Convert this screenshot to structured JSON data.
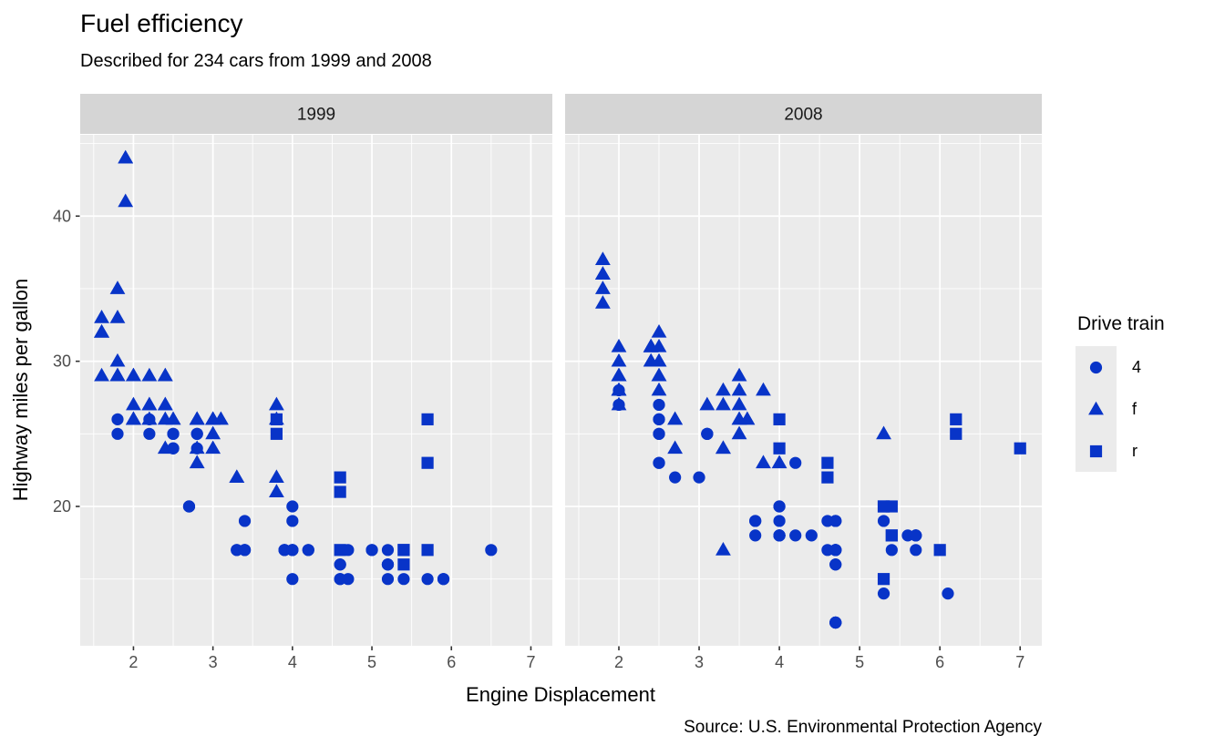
{
  "header": {
    "title": "Fuel efficiency",
    "subtitle": "Described for 234 cars from 1999 and 2008"
  },
  "caption": "Source: U.S. Environmental Protection Agency",
  "chart_data": {
    "type": "scatter",
    "title": "Fuel efficiency",
    "subtitle": "Described for 234 cars from 1999 and 2008",
    "xlabel": "Engine Displacement",
    "ylabel": "Highway miles per gallon",
    "x": {
      "domain": [
        1.33,
        7.27
      ],
      "ticks": [
        2,
        3,
        4,
        5,
        6,
        7
      ],
      "minor": [
        1.5,
        2.5,
        3.5,
        4.5,
        5.5,
        6.5
      ]
    },
    "y": {
      "domain": [
        10.4,
        45.6
      ],
      "ticks": [
        20,
        30,
        40
      ],
      "minor": [
        15,
        25,
        35,
        45
      ]
    },
    "grid": "on",
    "point_color": "#0834c8",
    "panel_bg": "#EBEBEB",
    "strip_bg": "#D5D5D5",
    "tick_label_color": "#4D4D4D",
    "legend": {
      "title": "Drive train",
      "position": "right",
      "entries": [
        {
          "label": "4",
          "shape": "circle"
        },
        {
          "label": "f",
          "shape": "triangle"
        },
        {
          "label": "r",
          "shape": "square"
        }
      ]
    },
    "facets": [
      {
        "label": "1999",
        "points": [
          [
            1.8,
            29,
            "f"
          ],
          [
            1.8,
            29,
            "f"
          ],
          [
            2.8,
            26,
            "f"
          ],
          [
            2.8,
            26,
            "f"
          ],
          [
            1.8,
            26,
            "4"
          ],
          [
            1.8,
            25,
            "4"
          ],
          [
            2.8,
            25,
            "4"
          ],
          [
            2.8,
            25,
            "4"
          ],
          [
            2.8,
            24,
            "4"
          ],
          [
            5.7,
            17,
            "r"
          ],
          [
            5.7,
            26,
            "r"
          ],
          [
            5.7,
            23,
            "r"
          ],
          [
            5.7,
            15,
            "4"
          ],
          [
            6.5,
            17,
            "4"
          ],
          [
            2.4,
            27,
            "f"
          ],
          [
            3.1,
            26,
            "f"
          ],
          [
            2.4,
            24,
            "f"
          ],
          [
            3.0,
            24,
            "f"
          ],
          [
            3.3,
            22,
            "f"
          ],
          [
            3.3,
            22,
            "f"
          ],
          [
            3.8,
            22,
            "f"
          ],
          [
            3.8,
            21,
            "f"
          ],
          [
            3.9,
            17,
            "4"
          ],
          [
            3.9,
            17,
            "4"
          ],
          [
            5.2,
            17,
            "4"
          ],
          [
            5.2,
            15,
            "4"
          ],
          [
            3.9,
            17,
            "4"
          ],
          [
            5.2,
            16,
            "4"
          ],
          [
            5.9,
            15,
            "4"
          ],
          [
            5.2,
            16,
            "4"
          ],
          [
            5.2,
            16,
            "4"
          ],
          [
            5.9,
            15,
            "4"
          ],
          [
            4.6,
            17,
            "r"
          ],
          [
            5.4,
            17,
            "r"
          ],
          [
            4.0,
            17,
            "4"
          ],
          [
            4.0,
            17,
            "4"
          ],
          [
            4.0,
            19,
            "4"
          ],
          [
            5.0,
            17,
            "4"
          ],
          [
            4.2,
            17,
            "4"
          ],
          [
            4.2,
            17,
            "4"
          ],
          [
            4.6,
            16,
            "4"
          ],
          [
            4.6,
            15,
            "4"
          ],
          [
            5.4,
            15,
            "4"
          ],
          [
            3.8,
            26,
            "r"
          ],
          [
            3.8,
            25,
            "r"
          ],
          [
            4.6,
            21,
            "r"
          ],
          [
            4.6,
            22,
            "r"
          ],
          [
            1.6,
            33,
            "f"
          ],
          [
            1.6,
            32,
            "f"
          ],
          [
            1.6,
            32,
            "f"
          ],
          [
            1.6,
            29,
            "f"
          ],
          [
            1.6,
            32,
            "f"
          ],
          [
            2.4,
            26,
            "f"
          ],
          [
            2.4,
            27,
            "f"
          ],
          [
            2.5,
            26,
            "f"
          ],
          [
            2.5,
            26,
            "f"
          ],
          [
            2.0,
            26,
            "f"
          ],
          [
            2.0,
            27,
            "f"
          ],
          [
            4.0,
            20,
            "4"
          ],
          [
            4.7,
            17,
            "4"
          ],
          [
            4.0,
            15,
            "4"
          ],
          [
            4.6,
            16,
            "4"
          ],
          [
            4.6,
            15,
            "4"
          ],
          [
            4.7,
            15,
            "4"
          ],
          [
            5.4,
            17,
            "r"
          ],
          [
            5.4,
            16,
            "r"
          ],
          [
            4.0,
            17,
            "4"
          ],
          [
            5.0,
            17,
            "4"
          ],
          [
            2.4,
            29,
            "f"
          ],
          [
            2.4,
            29,
            "f"
          ],
          [
            3.0,
            26,
            "f"
          ],
          [
            3.0,
            25,
            "f"
          ],
          [
            3.3,
            17,
            "4"
          ],
          [
            3.3,
            17,
            "4"
          ],
          [
            3.1,
            26,
            "f"
          ],
          [
            3.8,
            26,
            "f"
          ],
          [
            3.8,
            27,
            "f"
          ],
          [
            2.2,
            26,
            "4"
          ],
          [
            2.2,
            25,
            "4"
          ],
          [
            2.5,
            25,
            "4"
          ],
          [
            2.5,
            24,
            "4"
          ],
          [
            2.5,
            25,
            "4"
          ],
          [
            2.5,
            24,
            "4"
          ],
          [
            2.7,
            20,
            "4"
          ],
          [
            2.7,
            20,
            "4"
          ],
          [
            3.4,
            19,
            "4"
          ],
          [
            3.4,
            17,
            "4"
          ],
          [
            2.2,
            26,
            "f"
          ],
          [
            2.2,
            27,
            "f"
          ],
          [
            3.0,
            26,
            "f"
          ],
          [
            3.0,
            26,
            "f"
          ],
          [
            2.2,
            26,
            "f"
          ],
          [
            2.2,
            27,
            "f"
          ],
          [
            3.0,
            26,
            "f"
          ],
          [
            3.0,
            26,
            "f"
          ],
          [
            1.8,
            30,
            "f"
          ],
          [
            1.8,
            33,
            "f"
          ],
          [
            1.8,
            35,
            "f"
          ],
          [
            2.7,
            20,
            "4"
          ],
          [
            3.4,
            17,
            "4"
          ],
          [
            3.4,
            17,
            "4"
          ],
          [
            2.0,
            29,
            "f"
          ],
          [
            2.0,
            26,
            "f"
          ],
          [
            2.8,
            24,
            "f"
          ],
          [
            1.9,
            44,
            "f"
          ],
          [
            2.0,
            29,
            "f"
          ],
          [
            2.0,
            26,
            "f"
          ],
          [
            2.8,
            23,
            "f"
          ],
          [
            1.8,
            29,
            "f"
          ],
          [
            1.8,
            29,
            "f"
          ],
          [
            2.8,
            26,
            "f"
          ],
          [
            2.8,
            26,
            "f"
          ],
          [
            1.9,
            44,
            "f"
          ],
          [
            1.9,
            41,
            "f"
          ],
          [
            2.0,
            29,
            "f"
          ],
          [
            2.0,
            26,
            "f"
          ],
          [
            2.2,
            29,
            "f"
          ]
        ]
      },
      {
        "label": "2008",
        "points": [
          [
            2.0,
            31,
            "f"
          ],
          [
            2.0,
            30,
            "f"
          ],
          [
            3.1,
            27,
            "f"
          ],
          [
            2.0,
            28,
            "4"
          ],
          [
            2.0,
            27,
            "4"
          ],
          [
            3.1,
            25,
            "4"
          ],
          [
            3.1,
            25,
            "4"
          ],
          [
            3.1,
            25,
            "4"
          ],
          [
            4.2,
            23,
            "4"
          ],
          [
            5.3,
            20,
            "r"
          ],
          [
            5.3,
            15,
            "r"
          ],
          [
            5.3,
            20,
            "r"
          ],
          [
            6.0,
            17,
            "r"
          ],
          [
            6.2,
            26,
            "r"
          ],
          [
            6.2,
            25,
            "r"
          ],
          [
            7.0,
            24,
            "r"
          ],
          [
            5.3,
            19,
            "4"
          ],
          [
            5.3,
            14,
            "4"
          ],
          [
            2.4,
            30,
            "f"
          ],
          [
            3.5,
            29,
            "f"
          ],
          [
            3.6,
            26,
            "f"
          ],
          [
            3.3,
            24,
            "f"
          ],
          [
            3.3,
            24,
            "f"
          ],
          [
            3.3,
            17,
            "f"
          ],
          [
            3.8,
            23,
            "f"
          ],
          [
            4.0,
            23,
            "f"
          ],
          [
            3.7,
            19,
            "4"
          ],
          [
            4.7,
            19,
            "4"
          ],
          [
            4.7,
            19,
            "4"
          ],
          [
            4.7,
            12,
            "4"
          ],
          [
            4.7,
            17,
            "4"
          ],
          [
            4.7,
            17,
            "4"
          ],
          [
            4.7,
            12,
            "4"
          ],
          [
            5.7,
            18,
            "4"
          ],
          [
            4.7,
            17,
            "4"
          ],
          [
            4.7,
            16,
            "4"
          ],
          [
            4.7,
            12,
            "4"
          ],
          [
            3.7,
            18,
            "4"
          ],
          [
            4.7,
            16,
            "4"
          ],
          [
            5.7,
            17,
            "4"
          ],
          [
            4.7,
            17,
            "4"
          ],
          [
            4.7,
            12,
            "4"
          ],
          [
            5.4,
            18,
            "r"
          ],
          [
            4.0,
            18,
            "4"
          ],
          [
            4.0,
            18,
            "4"
          ],
          [
            4.6,
            17,
            "4"
          ],
          [
            5.4,
            17,
            "4"
          ],
          [
            4.0,
            26,
            "r"
          ],
          [
            4.0,
            24,
            "r"
          ],
          [
            4.6,
            23,
            "r"
          ],
          [
            4.6,
            22,
            "r"
          ],
          [
            5.4,
            20,
            "r"
          ],
          [
            1.8,
            34,
            "f"
          ],
          [
            1.8,
            36,
            "f"
          ],
          [
            1.8,
            36,
            "f"
          ],
          [
            2.0,
            29,
            "f"
          ],
          [
            2.4,
            30,
            "f"
          ],
          [
            2.4,
            31,
            "f"
          ],
          [
            3.3,
            28,
            "f"
          ],
          [
            2.0,
            28,
            "f"
          ],
          [
            2.0,
            27,
            "f"
          ],
          [
            2.7,
            26,
            "f"
          ],
          [
            2.7,
            26,
            "f"
          ],
          [
            2.7,
            24,
            "f"
          ],
          [
            3.0,
            22,
            "4"
          ],
          [
            3.7,
            19,
            "4"
          ],
          [
            4.7,
            19,
            "4"
          ],
          [
            4.7,
            12,
            "4"
          ],
          [
            5.7,
            18,
            "4"
          ],
          [
            6.1,
            14,
            "4"
          ],
          [
            4.2,
            18,
            "4"
          ],
          [
            4.4,
            18,
            "4"
          ],
          [
            5.4,
            18,
            "r"
          ],
          [
            4.0,
            19,
            "4"
          ],
          [
            4.6,
            19,
            "4"
          ],
          [
            2.5,
            31,
            "f"
          ],
          [
            2.5,
            32,
            "f"
          ],
          [
            3.5,
            27,
            "f"
          ],
          [
            3.5,
            26,
            "f"
          ],
          [
            3.5,
            26,
            "f"
          ],
          [
            4.0,
            20,
            "4"
          ],
          [
            5.6,
            18,
            "4"
          ],
          [
            3.8,
            28,
            "f"
          ],
          [
            5.3,
            25,
            "f"
          ],
          [
            2.5,
            27,
            "4"
          ],
          [
            2.5,
            26,
            "4"
          ],
          [
            2.5,
            26,
            "4"
          ],
          [
            2.5,
            25,
            "4"
          ],
          [
            2.5,
            25,
            "4"
          ],
          [
            2.5,
            23,
            "4"
          ],
          [
            2.5,
            23,
            "4"
          ],
          [
            4.0,
            20,
            "4"
          ],
          [
            4.7,
            17,
            "4"
          ],
          [
            2.4,
            31,
            "f"
          ],
          [
            2.4,
            31,
            "f"
          ],
          [
            3.5,
            28,
            "f"
          ],
          [
            2.4,
            31,
            "f"
          ],
          [
            3.3,
            27,
            "f"
          ],
          [
            1.8,
            35,
            "f"
          ],
          [
            1.8,
            37,
            "f"
          ],
          [
            5.7,
            18,
            "4"
          ],
          [
            2.7,
            22,
            "4"
          ],
          [
            4.0,
            18,
            "4"
          ],
          [
            4.0,
            18,
            "4"
          ],
          [
            2.0,
            28,
            "f"
          ],
          [
            2.0,
            29,
            "f"
          ],
          [
            2.0,
            29,
            "f"
          ],
          [
            2.0,
            29,
            "f"
          ],
          [
            2.5,
            29,
            "f"
          ],
          [
            2.5,
            30,
            "f"
          ],
          [
            2.5,
            29,
            "f"
          ],
          [
            2.5,
            30,
            "f"
          ],
          [
            2.0,
            28,
            "f"
          ],
          [
            2.0,
            29,
            "f"
          ],
          [
            3.6,
            26,
            "f"
          ],
          [
            2.5,
            28,
            "f"
          ],
          [
            3.5,
            25,
            "f"
          ]
        ]
      }
    ]
  }
}
